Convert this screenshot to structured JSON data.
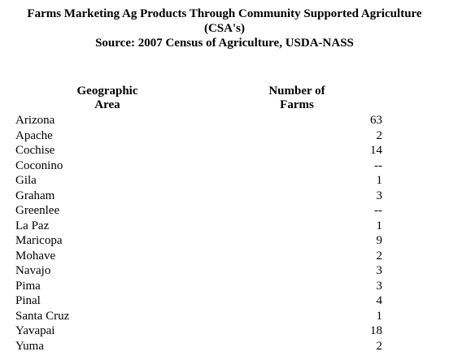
{
  "title": {
    "line1": "Farms Marketing Ag Products Through Community Supported Agriculture",
    "line2": "(CSA's)",
    "line3": "Source:  2007 Census of Agriculture, USDA-NASS"
  },
  "table": {
    "headers": {
      "area_line1": "Geographic",
      "area_line2": "Area",
      "farms_line1": "Number of",
      "farms_line2": "Farms"
    },
    "rows": [
      {
        "area": "Arizona",
        "farms": "63"
      },
      {
        "area": "Apache",
        "farms": "2"
      },
      {
        "area": "Cochise",
        "farms": "14"
      },
      {
        "area": "Coconino",
        "farms": "--"
      },
      {
        "area": "Gila",
        "farms": "1"
      },
      {
        "area": "Graham",
        "farms": "3"
      },
      {
        "area": "Greenlee",
        "farms": "--"
      },
      {
        "area": "La Paz",
        "farms": "1"
      },
      {
        "area": "Maricopa",
        "farms": "9"
      },
      {
        "area": "Mohave",
        "farms": "2"
      },
      {
        "area": "Navajo",
        "farms": "3"
      },
      {
        "area": "Pima",
        "farms": "3"
      },
      {
        "area": "Pinal",
        "farms": "4"
      },
      {
        "area": "Santa Cruz",
        "farms": "1"
      },
      {
        "area": "Yavapai",
        "farms": "18"
      },
      {
        "area": "Yuma",
        "farms": "2"
      }
    ]
  }
}
